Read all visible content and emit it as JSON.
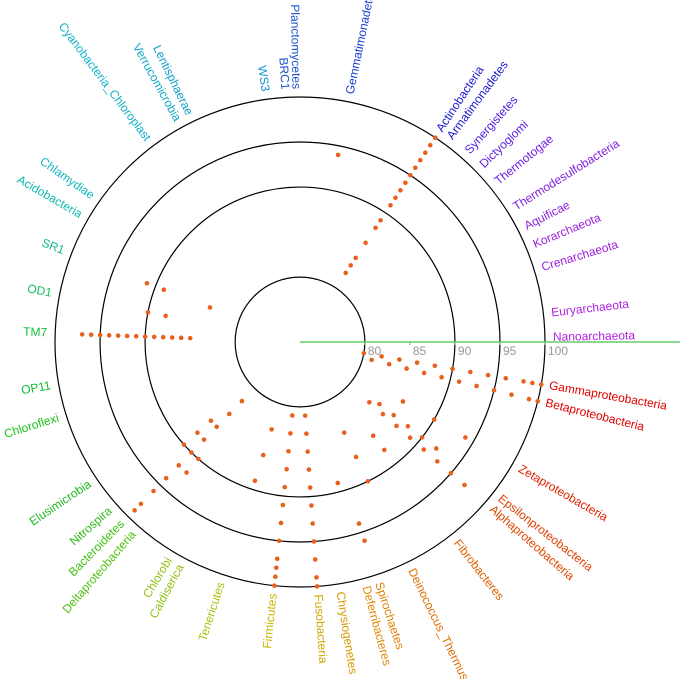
{
  "chart_data": {
    "type": "radial",
    "categories": [
      "Nanoarchaeota",
      "Euryarchaeota",
      "Crenarchaeota",
      "Korarchaeota",
      "Aquificae",
      "Thermodesulfobacteria",
      "Thermotogae",
      "Dictyoglomi",
      "Synergistetes",
      "Armatimonadetes",
      "Actinobacteria",
      "Gemmatimonadetes",
      "Planctomycetes",
      "BRC1",
      "WS3",
      "Lentisphaerae",
      "Verrucomicrobia",
      "Cyanobacteria_Chloroplast",
      "Chlamydiae",
      "Acidobacteria",
      "SR1",
      "OD1",
      "TM7",
      "OP11",
      "Chloroflexi",
      "Elusimicrobia",
      "Nitrospira",
      "Bacteroidetes",
      "Deltaproteobacteria",
      "Caldiserica",
      "Chlorobi",
      "Tenericutes",
      "Firmicutes",
      "Fusobacteria",
      "Chrysiogenetes",
      "Deferribacteres",
      "Spirochaetes",
      "Deinococcus_Thermus",
      "Fibrobacteres",
      "Alphaproteobacteria",
      "Epsilonproteobacteria",
      "Zetaproteobacteria",
      "Betaproteobacteria",
      "Gammaproteobacteria"
    ],
    "colors": [
      "#b020e0",
      "#b020e0",
      "#a020e0",
      "#a020e0",
      "#9020e0",
      "#8020e0",
      "#7020e0",
      "#6020e0",
      "#5020e0",
      "#1818d0",
      "#1818d0",
      "#1840d0",
      "#1850d0",
      "#1850d0",
      "#1090d0",
      "#10a0c8",
      "#10a8c8",
      "#10b0c8",
      "#10b8c0",
      "#10b8b0",
      "#10b890",
      "#10c060",
      "#10c040",
      "#10c030",
      "#20c020",
      "#20b820",
      "#30b818",
      "#40c010",
      "#50c010",
      "#90c010",
      "#90c010",
      "#b0c010",
      "#c8b800",
      "#d0a800",
      "#d89800",
      "#e08800",
      "#e08000",
      "#e07000",
      "#e06000",
      "#e04800",
      "#e04000",
      "#e02000",
      "#e00000",
      "#e00000"
    ],
    "values": [
      [],
      [],
      [],
      [],
      [],
      [],
      [],
      [],
      [],
      [],
      [
        82,
        83,
        84,
        86,
        88,
        89,
        91,
        92,
        93,
        94,
        95,
        96,
        97,
        98,
        99,
        100
      ],
      [
        94
      ],
      [],
      [],
      [],
      [],
      [],
      [],
      [],
      [],
      [
        83.5,
        89,
        91
      ],
      [
        88,
        90
      ],
      [
        85,
        86,
        87,
        88,
        89,
        90,
        91,
        92,
        93,
        94,
        95,
        96,
        97
      ],
      [],
      [],
      [],
      [
        86,
        88,
        90
      ],
      [
        82,
        84,
        86,
        88,
        90,
        92,
        94,
        96,
        98,
        99
      ],
      [
        90,
        92
      ],
      [],
      [],
      [
        83,
        86,
        89
      ],
      [
        81,
        83,
        85,
        87,
        89,
        91,
        93,
        95,
        97,
        98,
        99,
        100
      ],
      [
        81,
        83,
        85,
        87,
        89,
        91,
        93,
        95,
        97,
        99,
        100
      ],
      [],
      [
        89
      ],
      [
        94,
        96
      ],
      [
        84,
        87,
        90
      ],
      [
        86,
        88
      ],
      [
        83,
        85,
        87,
        89,
        91,
        93,
        95,
        97
      ],
      [
        84,
        86,
        88,
        90,
        92
      ],
      [
        86,
        90,
        94
      ],
      [
        81,
        83,
        85,
        87,
        89,
        91,
        93,
        95,
        97,
        99,
        100
      ],
      [
        80,
        82,
        84,
        86,
        88,
        90,
        92,
        94,
        96,
        98,
        99,
        100
      ]
    ],
    "dot_color": "#e8601c",
    "rlim": [
      72.8,
      100
    ],
    "rticks": [
      80,
      85,
      90,
      95,
      100
    ],
    "rings": [
      80,
      90,
      95,
      100
    ]
  }
}
